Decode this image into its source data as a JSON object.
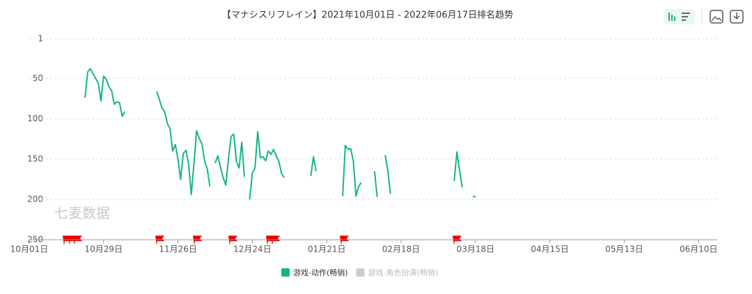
{
  "chart_data": {
    "type": "line",
    "title": "【マナシスリフレイン】2021年10月01日 - 2022年06月17日排名趋势",
    "watermark": "七麦数据",
    "y_inverted": true,
    "ylim": [
      250,
      1
    ],
    "yticks": [
      1,
      50,
      100,
      150,
      200,
      250
    ],
    "xlim": [
      "10月01日",
      "06月17日"
    ],
    "xticks": [
      "10月01日",
      "10月29日",
      "11月26日",
      "12月24日",
      "01月21日",
      "02月18日",
      "03月18日",
      "04月15日",
      "05月13日",
      "06月10日"
    ],
    "grid": true,
    "x": [
      "10月22日",
      "10月23日",
      "10月24日",
      "10月25日",
      "10月26日",
      "10月27日",
      "10月28日",
      "10月29日",
      "10月30日",
      "10月31日",
      "11月01日",
      "11月02日",
      "11月03日",
      "11月04日",
      "11月05日",
      "11月06日",
      "11月07日",
      "11月18日",
      "11月19日",
      "11月20日",
      "11月21日",
      "11月22日",
      "11月23日",
      "11月24日",
      "11月25日",
      "11月26日",
      "11月27日",
      "11月28日",
      "11月29日",
      "11月30日",
      "12月01日",
      "12月02日",
      "12月03日",
      "12月04日",
      "12月05日",
      "12月06日",
      "12月07日",
      "12月08日",
      "12月09日",
      "12月10日",
      "12月11日",
      "12月12日",
      "12月13日",
      "12月14日",
      "12月15日",
      "12月16日",
      "12月17日",
      "12月18日",
      "12月19日",
      "12月20日",
      "12月21日",
      "12月22日",
      "12月23日",
      "12月24日",
      "12月25日",
      "12月26日",
      "12月27日",
      "12月28日",
      "12月29日",
      "12月30日",
      "12月31日",
      "01月01日",
      "01月02日",
      "01月03日",
      "01月04日",
      "01月05日",
      "01月06日",
      "01月15日",
      "01月16日",
      "01月17日",
      "01月18日",
      "01月27日",
      "01月28日",
      "01月29日",
      "01月30日",
      "01月31日",
      "02月01日",
      "02月02日",
      "02月03日",
      "02月04日",
      "02月08日",
      "02月09日",
      "02月10日",
      "02月12日",
      "02月13日",
      "02月14日",
      "02月15日",
      "03月10日",
      "03月11日",
      "03月12日",
      "03月13日",
      "03月14日",
      "03月17日",
      "03月18日"
    ],
    "series": [
      {
        "name": "游戏-动作(畅销)",
        "color": "#16b48a",
        "values": [
          74,
          42,
          38,
          44,
          50,
          56,
          78,
          47,
          51,
          60,
          65,
          82,
          79,
          80,
          97,
          91,
          null,
          66,
          76,
          87,
          91,
          106,
          112,
          140,
          132,
          150,
          175,
          143,
          139,
          156,
          194,
          156,
          115,
          124,
          131,
          152,
          162,
          184,
          null,
          155,
          146,
          160,
          173,
          182,
          150,
          122,
          119,
          153,
          161,
          129,
          172,
          null,
          200,
          167,
          161,
          116,
          148,
          147,
          152,
          140,
          144,
          138,
          146,
          153,
          168,
          173,
          null,
          171,
          147,
          165,
          null,
          196,
          133,
          138,
          137,
          152,
          196,
          184,
          179,
          null,
          165,
          197,
          null,
          145,
          165,
          193,
          null,
          177,
          141,
          164,
          185,
          null,
          196,
          197
        ]
      }
    ],
    "inactive_series": [
      {
        "name": "游戏-角色扮演(畅销)",
        "color": "#cccccc"
      }
    ]
  }
}
